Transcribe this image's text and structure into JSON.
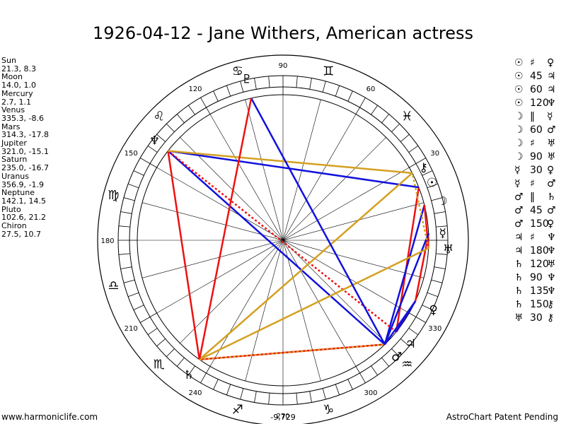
{
  "title": "1926-04-12 - Jane Withers, American actress",
  "bodies": [
    {
      "name": "Sun",
      "coords": "21.3, 8.3"
    },
    {
      "name": "Moon",
      "coords": "14.0, 1.0"
    },
    {
      "name": "Mercury",
      "coords": "2.7, 1.1"
    },
    {
      "name": "Venus",
      "coords": "335.3, -8.6"
    },
    {
      "name": "Mars",
      "coords": "314.3, -17.8"
    },
    {
      "name": "Jupiter",
      "coords": "321.0, -15.1"
    },
    {
      "name": "Saturn",
      "coords": "235.0, -16.7"
    },
    {
      "name": "Uranus",
      "coords": "356.9, -1.9"
    },
    {
      "name": "Neptune",
      "coords": "142.1, 14.5"
    },
    {
      "name": "Pluto",
      "coords": "102.6, 21.2"
    },
    {
      "name": "Chiron",
      "coords": "27.5, 10.7"
    }
  ],
  "aspects": [
    {
      "a": "☉",
      "sym": "♯",
      "b": "♀"
    },
    {
      "a": "☉",
      "sym": "45",
      "b": "♃"
    },
    {
      "a": "☉",
      "sym": "60",
      "b": "♃"
    },
    {
      "a": "☉",
      "sym": "120",
      "b": "♆"
    },
    {
      "a": "☽",
      "sym": "‖",
      "b": "☿"
    },
    {
      "a": "☽",
      "sym": "60",
      "b": "♂"
    },
    {
      "a": "☽",
      "sym": "♯",
      "b": "♅"
    },
    {
      "a": "☽",
      "sym": "90",
      "b": "♅"
    },
    {
      "a": "☿",
      "sym": "30",
      "b": "♀"
    },
    {
      "a": "☿",
      "sym": "♯",
      "b": "♂"
    },
    {
      "a": "♂",
      "sym": "‖",
      "b": "♄"
    },
    {
      "a": "♂",
      "sym": "45",
      "b": "♂"
    },
    {
      "a": "♂",
      "sym": "150",
      "b": "♀"
    },
    {
      "a": "♃",
      "sym": "♯",
      "b": "♆"
    },
    {
      "a": "♃",
      "sym": "180",
      "b": "♆"
    },
    {
      "a": "♄",
      "sym": "120",
      "b": "♅"
    },
    {
      "a": "♄",
      "sym": "90",
      "b": "♆"
    },
    {
      "a": "♄",
      "sym": "135",
      "b": "♆"
    },
    {
      "a": "♄",
      "sym": "150",
      "b": "⚷"
    },
    {
      "a": "♅",
      "sym": "30",
      "b": "⚷"
    }
  ],
  "chart": {
    "degree_labels": [
      "30",
      "60",
      "90",
      "120",
      "150",
      "180",
      "210",
      "240",
      "270",
      "300",
      "330"
    ],
    "bottom_value": "-9,729",
    "zodiac_signs": [
      "♊",
      "♋",
      "♌",
      "♍",
      "♎",
      "♏",
      "♐",
      "♑",
      "♒",
      "♓"
    ],
    "planet_glyphs": [
      "☉",
      "☽",
      "☿",
      "♀",
      "♂",
      "♃",
      "♄",
      "♅",
      "♆",
      "♇",
      "⚷"
    ],
    "colors": {
      "red": "#ee1111",
      "blue": "#1111dd",
      "gold": "#d4a020"
    }
  },
  "footer": {
    "left": "www.harmoniclife.com",
    "right": "AstroChart Patent Pending"
  }
}
